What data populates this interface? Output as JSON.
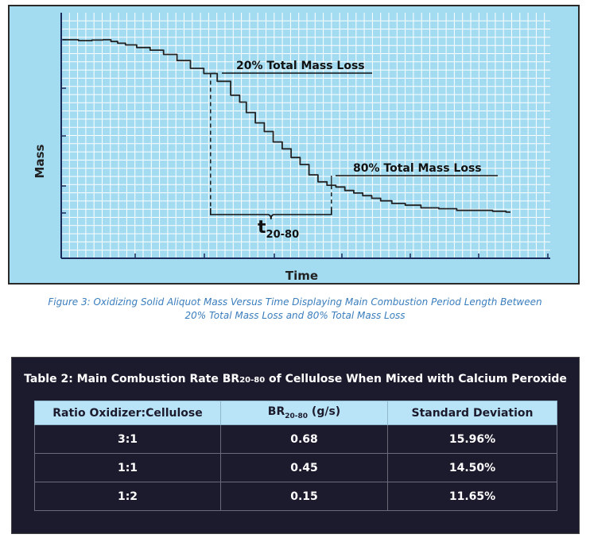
{
  "figure": {
    "y_axis_label": "Mass",
    "x_axis_label": "Time",
    "annotation_20": "20% Total Mass Loss",
    "annotation_80": "80% Total Mass Loss",
    "interval_label_main": "t",
    "interval_label_sub": "20-80",
    "line_color": "#222222",
    "background_color": "#a3dbf1",
    "grid_color": "#ffffff",
    "chart_data": {
      "type": "line",
      "title": "",
      "xlabel": "Time",
      "ylabel": "Mass",
      "grid": true,
      "series": [
        {
          "x": [
            0,
            2,
            5,
            8,
            10,
            11.5,
            13,
            15,
            18,
            21,
            24,
            27,
            30,
            33,
            36,
            39,
            40,
            42,
            44,
            46,
            48,
            50,
            52,
            54,
            56,
            58,
            60,
            62,
            64,
            66,
            68,
            70,
            72,
            75,
            78,
            82,
            86,
            90,
            94,
            98,
            100
          ],
          "y": [
            100,
            100,
            99.5,
            99.8,
            100,
            99,
            98,
            97,
            95.5,
            94,
            91.5,
            88,
            83.5,
            80.5,
            76,
            68,
            64,
            58,
            52,
            47,
            41,
            37,
            32,
            28,
            22,
            18,
            16,
            15,
            13,
            11.5,
            10,
            8.5,
            7,
            5.5,
            4.5,
            3,
            2.5,
            1.5,
            1.5,
            1,
            0.5
          ]
        }
      ],
      "markers": {
        "t20": 33,
        "t80": 60
      }
    }
  },
  "caption": {
    "line1": "Figure 3:  Oxidizing Solid Aliquot Mass Versus Time Displaying Main Combustion Period Length Between",
    "line2": "20% Total Mass Loss and 80% Total Mass Loss"
  },
  "table": {
    "title_prefix": "Table 2:  Main Combustion Rate BR",
    "title_sub": "20-80",
    "title_suffix": " of Cellulose When Mixed with Calcium Peroxide",
    "headers": {
      "ratio": "Ratio Oxidizer:Cellulose",
      "br_main": "BR",
      "br_sub": "20-80",
      "br_unit": " (g/s)",
      "std": "Standard Deviation"
    },
    "rows": [
      {
        "ratio": "3:1",
        "br": "0.68",
        "std": "15.96%"
      },
      {
        "ratio": "1:1",
        "br": "0.45",
        "std": "14.50%"
      },
      {
        "ratio": "1:2",
        "br": "0.15",
        "std": "11.65%"
      }
    ],
    "header_bg": "#b9e3f6",
    "panel_bg": "#1c1b2d"
  }
}
